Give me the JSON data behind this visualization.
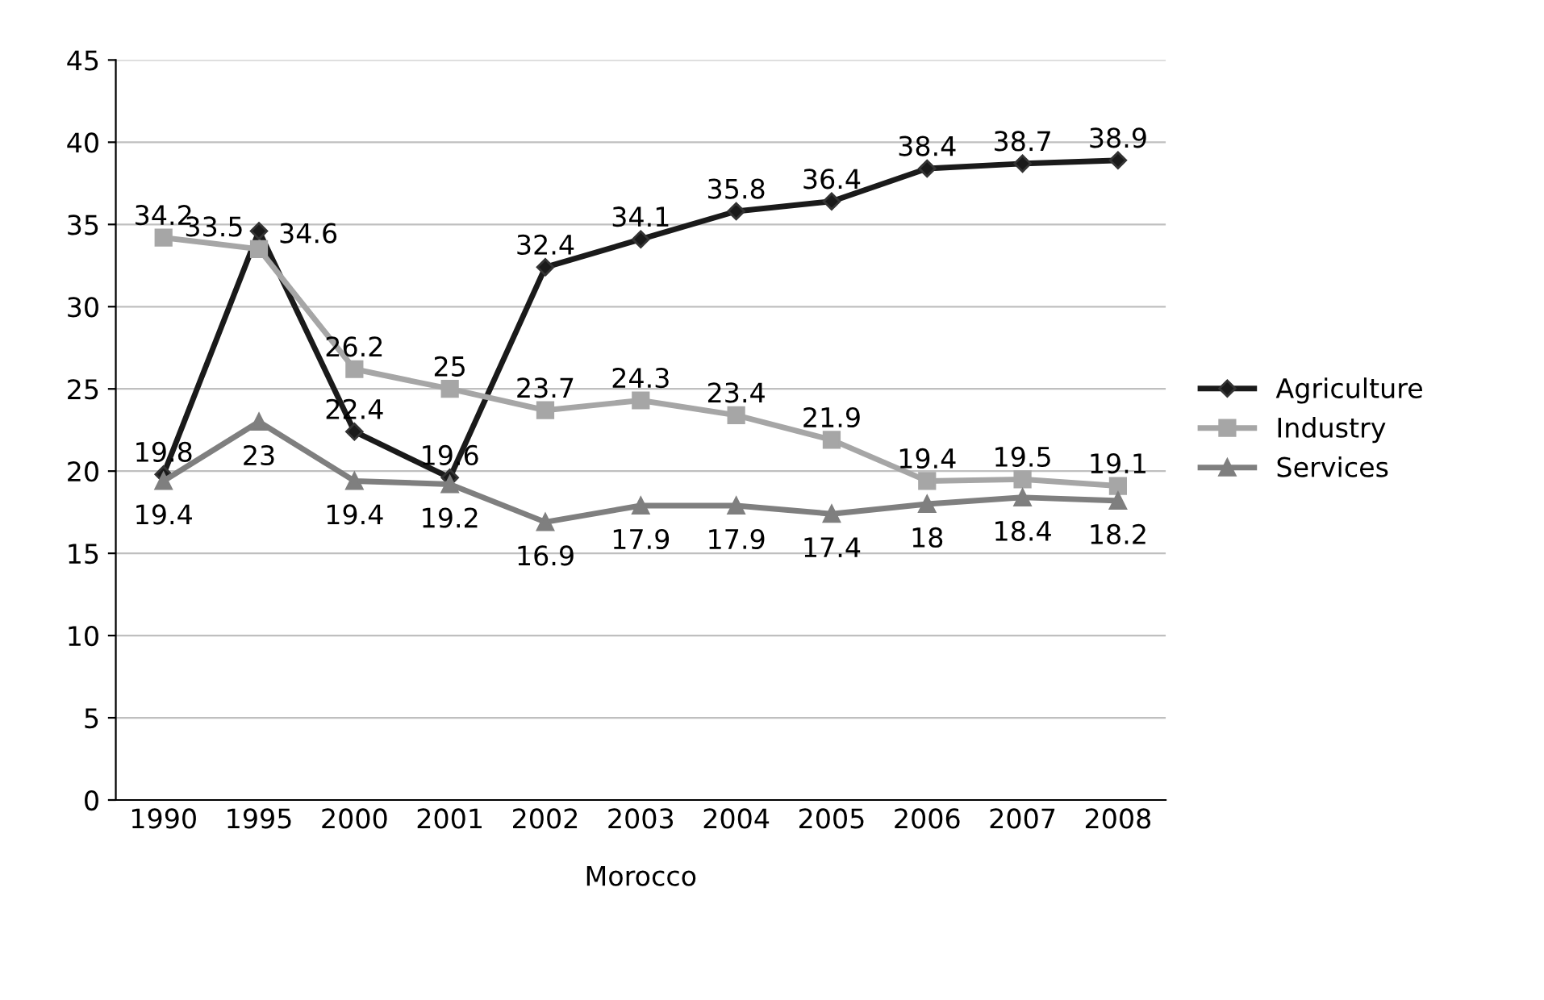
{
  "chart_data": {
    "type": "line",
    "xlabel": "Morocco",
    "categories": [
      "1990",
      "1995",
      "2000",
      "2001",
      "2002",
      "2003",
      "2004",
      "2005",
      "2006",
      "2007",
      "2008"
    ],
    "series": [
      {
        "name": "Agriculture",
        "color": "#1a1a1a",
        "marker": "diamond",
        "values": [
          19.8,
          34.6,
          22.4,
          19.6,
          32.4,
          34.1,
          35.8,
          36.4,
          38.4,
          38.7,
          38.9
        ]
      },
      {
        "name": "Industry",
        "color": "#a6a6a6",
        "marker": "square",
        "values": [
          34.2,
          33.5,
          26.2,
          25,
          23.7,
          24.3,
          23.4,
          21.9,
          19.4,
          19.5,
          19.1
        ]
      },
      {
        "name": "Services",
        "color": "#7f7f7f",
        "marker": "triangle",
        "values": [
          19.4,
          23,
          19.4,
          19.2,
          16.9,
          17.9,
          17.9,
          17.4,
          18,
          18.4,
          18.2
        ]
      }
    ],
    "ylim": [
      0,
      45
    ],
    "yticks": [
      0,
      5,
      10,
      15,
      20,
      25,
      30,
      35,
      40,
      45
    ],
    "grid": "y",
    "legend": "right",
    "data_labels": true
  }
}
